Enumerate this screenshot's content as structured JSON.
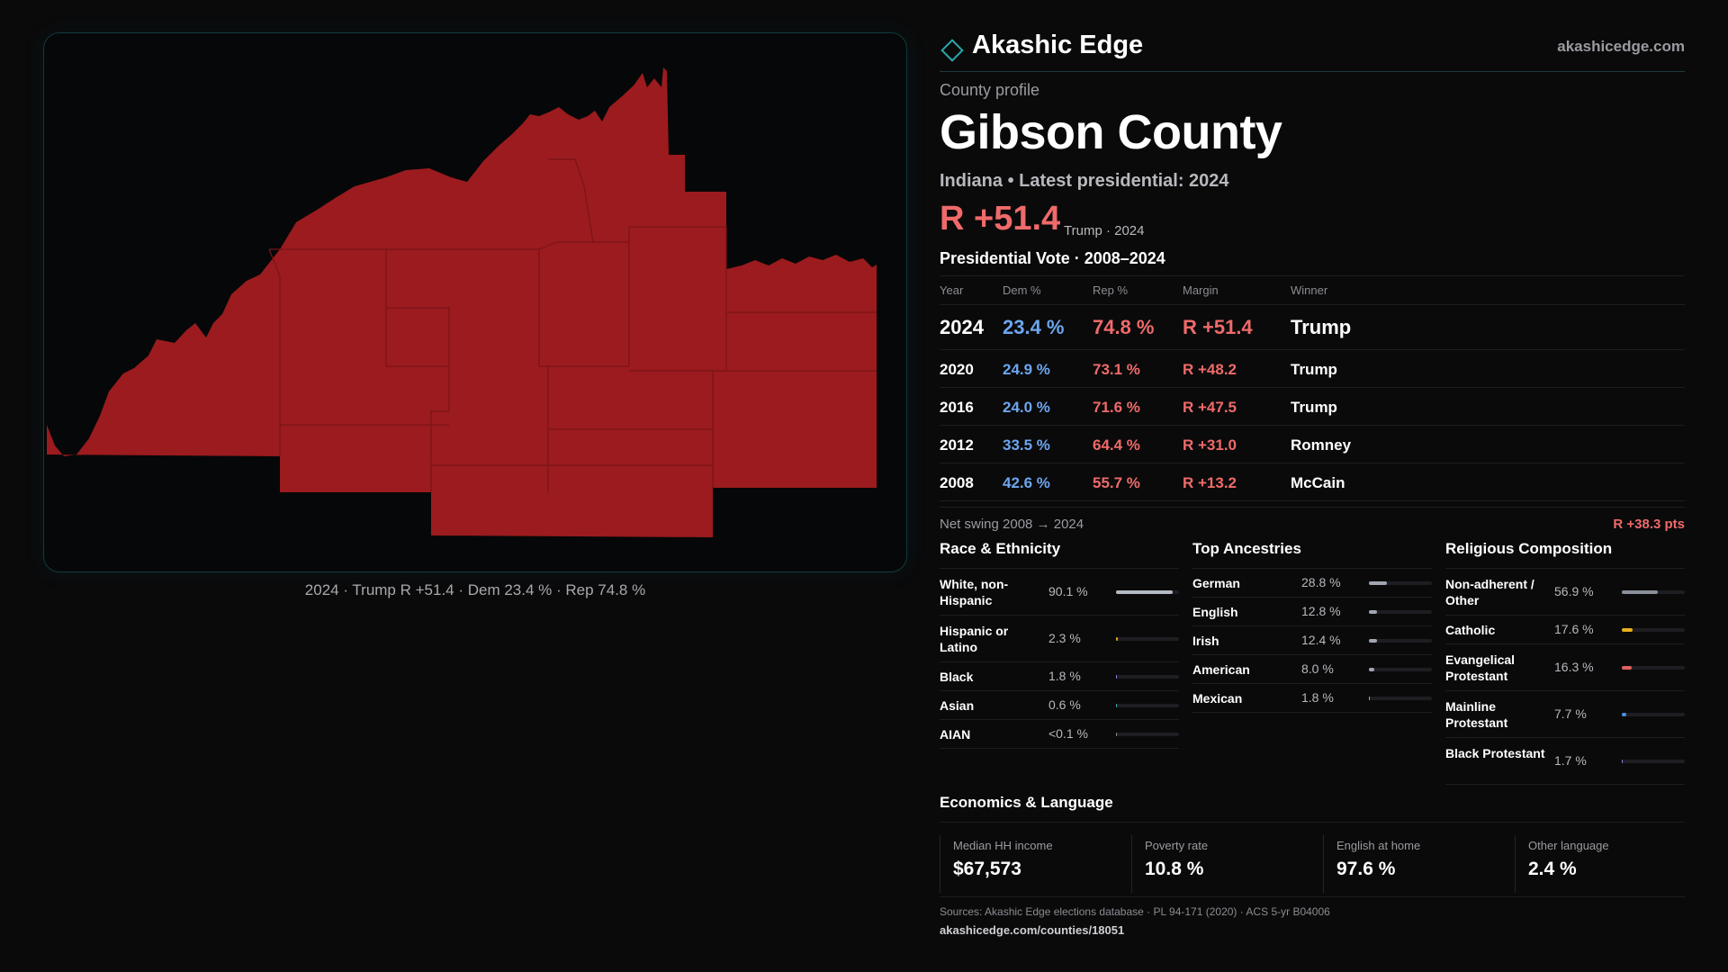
{
  "brand": {
    "name": "Akashic Edge",
    "url": "akashicedge.com",
    "accent": "#2aa6a8"
  },
  "map": {
    "caption": "2024 · Trump R +51.4 · Dem 23.4 % · Rep 74.8 %",
    "fill_color": "#9b1b1e"
  },
  "header": {
    "kicker": "County profile",
    "title": "Gibson County",
    "subtitle": "Indiana • Latest presidential: 2024",
    "margin": "R +51.4",
    "margin_note": "Trump · 2024"
  },
  "presidential": {
    "title": "Presidential Vote · 2008–2024",
    "columns": [
      "Year",
      "Dem %",
      "Rep %",
      "Margin",
      "Winner"
    ],
    "rows": [
      {
        "year": "2024",
        "dem": "23.4 %",
        "rep": "74.8 %",
        "margin": "R +51.4",
        "winner": "Trump"
      },
      {
        "year": "2020",
        "dem": "24.9 %",
        "rep": "73.1 %",
        "margin": "R +48.2",
        "winner": "Trump"
      },
      {
        "year": "2016",
        "dem": "24.0 %",
        "rep": "71.6 %",
        "margin": "R +47.5",
        "winner": "Trump"
      },
      {
        "year": "2012",
        "dem": "33.5 %",
        "rep": "64.4 %",
        "margin": "R +31.0",
        "winner": "Romney"
      },
      {
        "year": "2008",
        "dem": "42.6 %",
        "rep": "55.7 %",
        "margin": "R +13.2",
        "winner": "McCain"
      }
    ],
    "swing_label": "Net swing 2008 → 2024",
    "swing_value": "R +38.3 pts"
  },
  "race": {
    "title": "Race & Ethnicity",
    "items": [
      {
        "label": "White, non-Hispanic",
        "pct": "90.1 %",
        "value": 90.1,
        "color": "#b4bac4"
      },
      {
        "label": "Hispanic or Latino",
        "pct": "2.3 %",
        "value": 2.3,
        "color": "#e0a020"
      },
      {
        "label": "Black",
        "pct": "1.8 %",
        "value": 1.8,
        "color": "#8a7be0"
      },
      {
        "label": "Asian",
        "pct": "0.6 %",
        "value": 0.6,
        "color": "#3cb0a0"
      },
      {
        "label": "AIAN",
        "pct": "<0.1 %",
        "value": 0.05,
        "color": "#888888"
      }
    ]
  },
  "ancestry": {
    "title": "Top Ancestries",
    "items": [
      {
        "label": "German",
        "pct": "28.8 %",
        "value": 28.8,
        "color": "#a0a6b0"
      },
      {
        "label": "English",
        "pct": "12.8 %",
        "value": 12.8,
        "color": "#a0a6b0"
      },
      {
        "label": "Irish",
        "pct": "12.4 %",
        "value": 12.4,
        "color": "#a0a6b0"
      },
      {
        "label": "American",
        "pct": "8.0 %",
        "value": 8.0,
        "color": "#a0a6b0"
      },
      {
        "label": "Mexican",
        "pct": "1.8 %",
        "value": 1.8,
        "color": "#e0a020"
      }
    ]
  },
  "religion": {
    "title": "Religious Composition",
    "items": [
      {
        "label": "Non-adherent / Other",
        "pct": "56.9 %",
        "value": 56.9,
        "color": "#8a8f98"
      },
      {
        "label": "Catholic",
        "pct": "17.6 %",
        "value": 17.6,
        "color": "#e8b020"
      },
      {
        "label": "Evangelical Protestant",
        "pct": "16.3 %",
        "value": 16.3,
        "color": "#e06060"
      },
      {
        "label": "Mainline Protestant",
        "pct": "7.7 %",
        "value": 7.7,
        "color": "#4a90e0"
      },
      {
        "label": "Black Protestant",
        "pct": "1.7 %",
        "value": 1.7,
        "color": "#8a7be0"
      }
    ]
  },
  "economics": {
    "title": "Economics & Language",
    "items": [
      {
        "label": "Median HH income",
        "value": "$67,573"
      },
      {
        "label": "Poverty rate",
        "value": "10.8 %"
      },
      {
        "label": "English at home",
        "value": "97.6 %"
      },
      {
        "label": "Other language",
        "value": "2.4 %"
      }
    ]
  },
  "footer": {
    "sources": "Sources: Akashic Edge elections database · PL 94-171 (2020) · ACS 5-yr B04006",
    "url": "akashicedge.com/counties/18051"
  }
}
